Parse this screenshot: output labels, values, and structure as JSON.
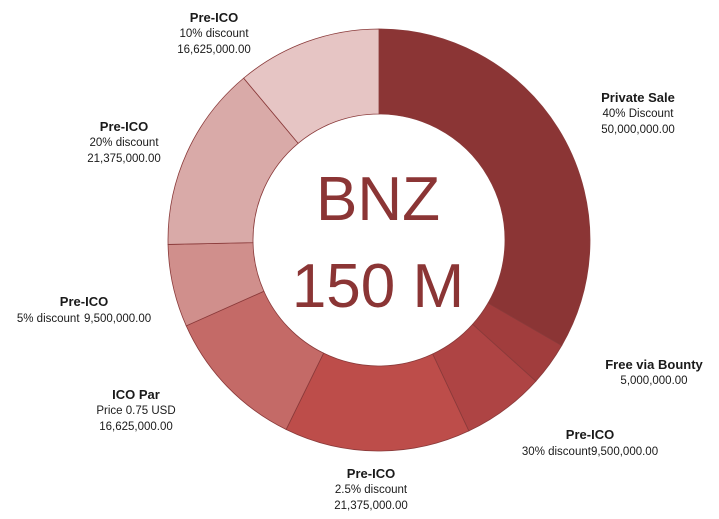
{
  "chart_data": {
    "type": "pie",
    "center_label": [
      "BNZ",
      "150 M"
    ],
    "slices": [
      {
        "title": "Private Sale",
        "note": "40% Discount",
        "value": 50000000,
        "value_label": "50,000,000.00",
        "color": "#8b3535"
      },
      {
        "title": "Free via Bounty",
        "note": "",
        "value": 5000000,
        "value_label": "5,000,000.00",
        "color": "#a13d3d"
      },
      {
        "title": "Pre-ICO",
        "note": "30% discount",
        "value": 9500000,
        "value_label": "9,500,000.00",
        "color": "#ae4444"
      },
      {
        "title": "Pre-ICO",
        "note": "2.5% discount",
        "value": 21375000,
        "value_label": "21,375,000.00",
        "color": "#bd4d4a"
      },
      {
        "title": "ICO Par",
        "note": "Price 0.75 USD",
        "value": 16625000,
        "value_label": "16,625,000.00",
        "color": "#c46a67"
      },
      {
        "title": "Pre-ICO",
        "note": "5% discount",
        "value": 9500000,
        "value_label": "9,500,000.00",
        "color": "#d08f8c"
      },
      {
        "title": "Pre-ICO",
        "note": "20% discount",
        "value": 21375000,
        "value_label": "21,375,000.00",
        "color": "#d9aaa8"
      },
      {
        "title": "Pre-ICO",
        "note": "10% discount",
        "value": 16625000,
        "value_label": "16,625,000.00",
        "color": "#e6c5c4"
      }
    ]
  }
}
